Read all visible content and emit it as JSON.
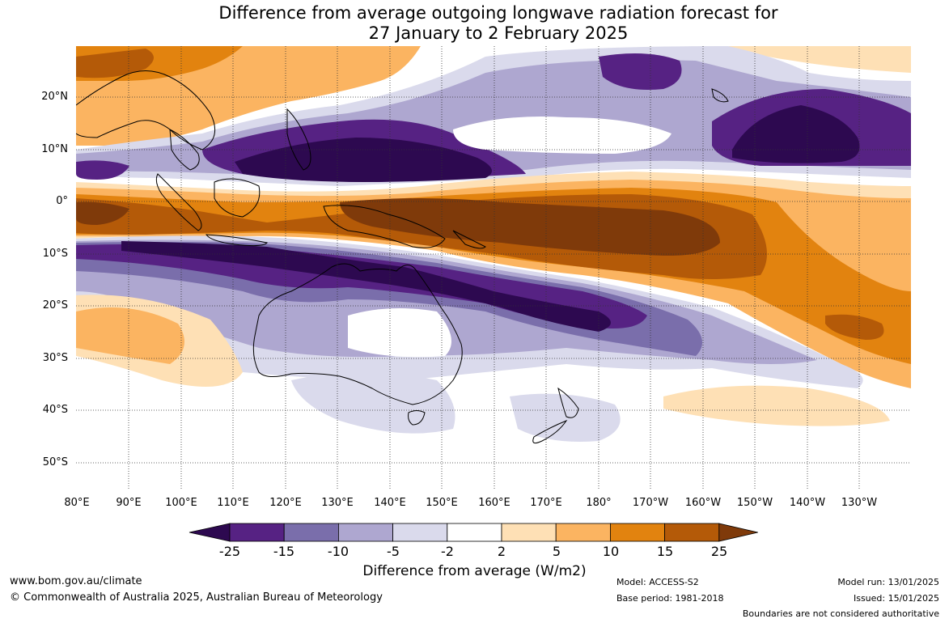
{
  "title": {
    "line1": "Difference from average outgoing longwave radiation forecast for",
    "line2": "27 January to 2 February 2025"
  },
  "map": {
    "lat_labels": [
      "20°N",
      "10°N",
      "0°",
      "10°S",
      "20°S",
      "30°S",
      "40°S",
      "50°S"
    ],
    "lon_labels": [
      "80°E",
      "90°E",
      "100°E",
      "110°E",
      "120°E",
      "130°E",
      "140°E",
      "150°E",
      "160°E",
      "170°E",
      "180°",
      "170°W",
      "160°W",
      "150°W",
      "140°W",
      "130°W"
    ]
  },
  "colorbar": {
    "ticks": [
      "-25",
      "-15",
      "-10",
      "-5",
      "-2",
      "2",
      "5",
      "10",
      "15",
      "25"
    ],
    "colors": [
      "#2d0950",
      "#562283",
      "#7a6eab",
      "#aea7d0",
      "#dadaec",
      "#ffffff",
      "#fee0b5",
      "#fbb461",
      "#e2830f",
      "#b45a08",
      "#7f3a0a"
    ],
    "title": "Difference from average (W/m2)"
  },
  "footer": {
    "website": "www.bom.gov.au/climate",
    "copyright": "© Commonwealth of Australia 2025, Australian Bureau of Meteorology",
    "model": "Model: ACCESS-S2",
    "base_period": "Base period: 1981-2018",
    "model_run": "Model run: 13/01/2025",
    "issued": "Issued: 15/01/2025",
    "boundaries": "Boundaries are not considered authoritative"
  }
}
